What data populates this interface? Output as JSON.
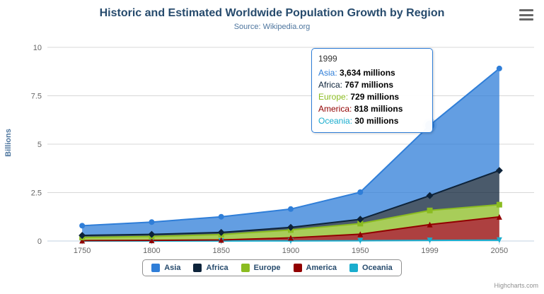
{
  "header": {
    "title": "Historic and Estimated Worldwide Population Growth by Region",
    "subtitle": "Source: Wikipedia.org",
    "menu_icon": "hamburger-menu-icon"
  },
  "chart_data": {
    "type": "area",
    "stacking": "normal",
    "title": "Historic and Estimated Worldwide Population Growth by Region",
    "subtitle": "Source: Wikipedia.org",
    "categories": [
      "1750",
      "1800",
      "1850",
      "1900",
      "1950",
      "1999",
      "2050"
    ],
    "xlabel": "",
    "ylabel": "Billions",
    "ylim": [
      0,
      10
    ],
    "yticks": [
      0,
      2.5,
      5,
      7.5,
      10
    ],
    "unit": "millions",
    "grid": true,
    "legend_position": "bottom-center",
    "series": [
      {
        "name": "Asia",
        "color": "#2f7ed8",
        "marker": "circle",
        "values": [
          502,
          635,
          809,
          947,
          1402,
          3634,
          5268
        ]
      },
      {
        "name": "Africa",
        "color": "#0d233a",
        "marker": "diamond",
        "values": [
          106,
          107,
          111,
          133,
          221,
          767,
          1766
        ]
      },
      {
        "name": "Europe",
        "color": "#8bbc21",
        "marker": "square",
        "values": [
          163,
          203,
          276,
          408,
          547,
          729,
          628
        ]
      },
      {
        "name": "America",
        "color": "#910000",
        "marker": "triangle",
        "values": [
          18,
          31,
          54,
          156,
          339,
          818,
          1201
        ]
      },
      {
        "name": "Oceania",
        "color": "#1aadce",
        "marker": "triangle-down",
        "values": [
          2,
          2,
          2,
          6,
          13,
          30,
          46
        ]
      }
    ]
  },
  "tooltip": {
    "visible": true,
    "category": "1999",
    "highlight": {
      "series": "Asia",
      "category": "1999"
    },
    "rows": [
      {
        "name": "Asia",
        "color": "#2f7ed8",
        "value": "3,634 millions"
      },
      {
        "name": "Africa",
        "color": "#0d233a",
        "value": "767 millions"
      },
      {
        "name": "Europe",
        "color": "#8bbc21",
        "value": "729 millions"
      },
      {
        "name": "America",
        "color": "#910000",
        "value": "818 millions"
      },
      {
        "name": "Oceania",
        "color": "#1aadce",
        "value": "30 millions"
      }
    ]
  },
  "credits": "Highcharts.com",
  "theme": {
    "title_color": "#274b6d",
    "subtitle_color": "#4d759e",
    "axis_title_color": "#4d759e",
    "axis_label_color": "#666666",
    "grid_color": "#d8d8d8",
    "axis_line_color": "#c0d0e0",
    "legend_text_color": "#274b6d",
    "legend_border_color": "#909090",
    "tooltip_border": "#2f7ed8",
    "credits_color": "#909090",
    "menu_icon_color": "#666666"
  }
}
